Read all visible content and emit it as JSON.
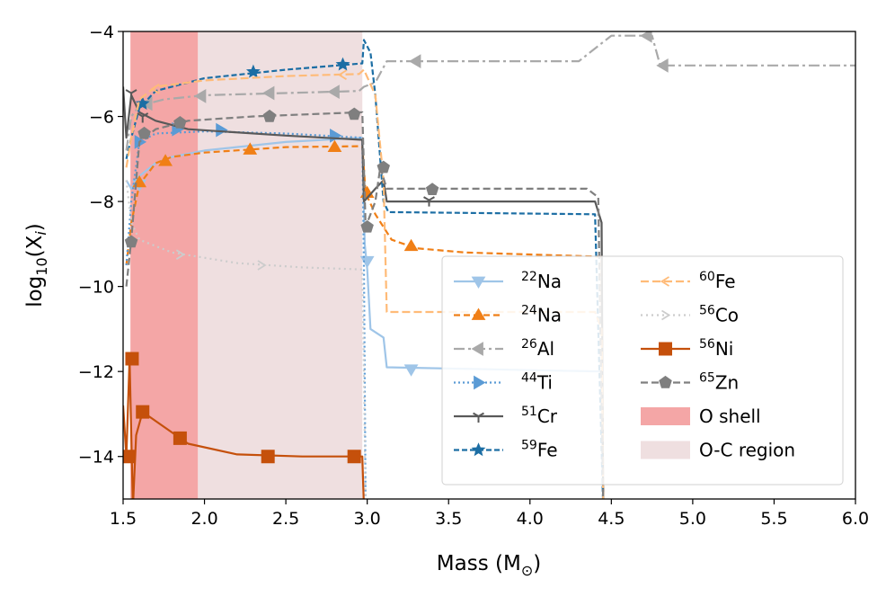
{
  "chart_data": {
    "type": "line",
    "xlabel": "Mass (M",
    "xlabel_suffix": ")",
    "xlabel_sub": "⊙",
    "ylabel_base": "log",
    "ylabel_sub": "10",
    "ylabel_arg": "(X",
    "ylabel_arg_sub": "i",
    "ylabel_close": ")",
    "xlim": [
      1.5,
      6.0
    ],
    "ylim": [
      -15,
      -4
    ],
    "xticks": [
      1.5,
      2.0,
      2.5,
      3.0,
      3.5,
      4.0,
      4.5,
      5.0,
      5.5,
      6.0
    ],
    "xtick_labels": [
      "1.5",
      "2.0",
      "2.5",
      "3.0",
      "3.5",
      "4.0",
      "4.5",
      "5.0",
      "5.5",
      "6.0"
    ],
    "yticks": [
      -4,
      -6,
      -8,
      -10,
      -12,
      -14
    ],
    "ytick_labels": [
      "−4",
      "−6",
      "−8",
      "−10",
      "−12",
      "−14"
    ],
    "legend_position": "lower-right",
    "regions": [
      {
        "name": "O shell",
        "x": [
          1.545,
          1.96
        ],
        "color": "#f4a6a6"
      },
      {
        "name": "O-C region",
        "x": [
          1.96,
          2.97
        ],
        "color": "#efdfe0"
      }
    ],
    "series": [
      {
        "label_sup": "22",
        "label": "Na",
        "color": "#9fc5e8",
        "dash": "",
        "marker": "tri-down",
        "points": [
          [
            1.52,
            -7.5
          ],
          [
            1.55,
            -7.7
          ],
          [
            1.6,
            -7.4
          ],
          [
            1.7,
            -7.1
          ],
          [
            1.8,
            -6.95
          ],
          [
            2.0,
            -6.8
          ],
          [
            2.5,
            -6.6
          ],
          [
            2.97,
            -6.5
          ],
          [
            2.985,
            -9.0
          ],
          [
            3.0,
            -9.6
          ],
          [
            3.02,
            -11.0
          ],
          [
            3.1,
            -11.2
          ],
          [
            3.12,
            -11.9
          ],
          [
            4.44,
            -12.0
          ],
          [
            4.45,
            -15.2
          ]
        ],
        "markers": [
          [
            1.6,
            -7.6
          ],
          [
            3.0,
            -9.4
          ],
          [
            3.27,
            -11.95
          ]
        ]
      },
      {
        "label_sup": "24",
        "label": "Na",
        "color": "#f07f16",
        "dash": "7,4",
        "marker": "tri-up",
        "points": [
          [
            1.52,
            -9.5
          ],
          [
            1.55,
            -8.5
          ],
          [
            1.6,
            -7.6
          ],
          [
            1.7,
            -7.1
          ],
          [
            1.8,
            -6.95
          ],
          [
            2.0,
            -6.85
          ],
          [
            2.5,
            -6.72
          ],
          [
            2.97,
            -6.7
          ],
          [
            2.99,
            -7.8
          ],
          [
            3.05,
            -8.3
          ],
          [
            3.15,
            -8.9
          ],
          [
            3.3,
            -9.1
          ],
          [
            3.6,
            -9.2
          ],
          [
            4.44,
            -9.3
          ],
          [
            4.45,
            -15.2
          ]
        ],
        "markers": [
          [
            1.6,
            -7.55
          ],
          [
            1.76,
            -7.05
          ],
          [
            2.28,
            -6.78
          ],
          [
            2.8,
            -6.72
          ],
          [
            3.0,
            -7.8
          ],
          [
            3.27,
            -9.05
          ]
        ]
      },
      {
        "label_sup": "26",
        "label": "Al",
        "color": "#a9a9a9",
        "dash": "12,4,3,4",
        "marker": "tri-left",
        "points": [
          [
            1.52,
            -6.8
          ],
          [
            1.55,
            -6.0
          ],
          [
            1.6,
            -5.75
          ],
          [
            1.75,
            -5.6
          ],
          [
            2.0,
            -5.5
          ],
          [
            2.5,
            -5.45
          ],
          [
            2.95,
            -5.4
          ],
          [
            2.98,
            -5.3
          ],
          [
            3.05,
            -5.2
          ],
          [
            3.12,
            -4.7
          ],
          [
            4.3,
            -4.7
          ],
          [
            4.5,
            -4.1
          ],
          [
            4.75,
            -4.1
          ],
          [
            4.8,
            -4.8
          ],
          [
            6.0,
            -4.8
          ]
        ],
        "markers": [
          [
            1.65,
            -5.7
          ],
          [
            1.98,
            -5.52
          ],
          [
            2.4,
            -5.45
          ],
          [
            2.8,
            -5.42
          ],
          [
            3.3,
            -4.7
          ],
          [
            4.72,
            -4.1
          ],
          [
            4.82,
            -4.8
          ]
        ]
      },
      {
        "label_sup": "44",
        "label": "Ti",
        "color": "#5b9bd5",
        "dash": "2,3",
        "marker": "tri-right",
        "points": [
          [
            1.52,
            -9.5
          ],
          [
            1.55,
            -8.0
          ],
          [
            1.6,
            -6.6
          ],
          [
            1.7,
            -6.4
          ],
          [
            2.0,
            -6.35
          ],
          [
            2.5,
            -6.4
          ],
          [
            2.97,
            -6.5
          ],
          [
            2.98,
            -9.5
          ],
          [
            2.99,
            -15.2
          ]
        ],
        "markers": [
          [
            1.6,
            -6.6
          ],
          [
            1.83,
            -6.3
          ],
          [
            2.1,
            -6.32
          ],
          [
            2.8,
            -6.45
          ]
        ]
      },
      {
        "label_sup": "51",
        "label": "Cr",
        "color": "#595959",
        "dash": "",
        "marker": "tri-y",
        "points": [
          [
            1.5,
            -5.3
          ],
          [
            1.52,
            -6.5
          ],
          [
            1.55,
            -5.5
          ],
          [
            1.6,
            -5.9
          ],
          [
            1.7,
            -6.1
          ],
          [
            1.9,
            -6.3
          ],
          [
            2.5,
            -6.45
          ],
          [
            2.97,
            -6.55
          ],
          [
            2.98,
            -8.0
          ],
          [
            3.05,
            -7.7
          ],
          [
            3.1,
            -7.5
          ],
          [
            3.12,
            -8.0
          ],
          [
            4.4,
            -8.0
          ],
          [
            4.44,
            -8.5
          ],
          [
            4.45,
            -15.2
          ]
        ],
        "markers": [
          [
            1.55,
            -5.45
          ],
          [
            1.62,
            -6.0
          ],
          [
            3.38,
            -7.97
          ]
        ]
      },
      {
        "label_sup": "59",
        "label": "Fe",
        "color": "#1c6ea4",
        "dash": "6,3",
        "marker": "star",
        "points": [
          [
            1.52,
            -7.0
          ],
          [
            1.55,
            -6.5
          ],
          [
            1.6,
            -5.8
          ],
          [
            1.7,
            -5.4
          ],
          [
            2.0,
            -5.1
          ],
          [
            2.5,
            -4.9
          ],
          [
            2.97,
            -4.75
          ],
          [
            2.98,
            -4.2
          ],
          [
            3.02,
            -4.5
          ],
          [
            3.05,
            -5.5
          ],
          [
            3.1,
            -8.0
          ],
          [
            3.13,
            -8.25
          ],
          [
            4.4,
            -8.3
          ],
          [
            4.45,
            -15.2
          ]
        ],
        "markers": [
          [
            1.62,
            -5.7
          ],
          [
            2.3,
            -4.95
          ],
          [
            2.85,
            -4.78
          ]
        ]
      },
      {
        "label_sup": "60",
        "label": "Fe",
        "color": "#ffbb78",
        "dash": "9,4",
        "marker": "tri-left-small",
        "points": [
          [
            1.52,
            -7.2
          ],
          [
            1.55,
            -6.5
          ],
          [
            1.6,
            -5.6
          ],
          [
            1.7,
            -5.3
          ],
          [
            2.0,
            -5.15
          ],
          [
            2.5,
            -5.05
          ],
          [
            2.95,
            -5.0
          ],
          [
            2.98,
            -4.9
          ],
          [
            3.05,
            -5.5
          ],
          [
            3.1,
            -7.5
          ],
          [
            3.12,
            -10.6
          ],
          [
            4.4,
            -10.6
          ],
          [
            4.44,
            -11.0
          ],
          [
            4.45,
            -15.2
          ]
        ],
        "markers": [
          [
            1.7,
            -5.35
          ],
          [
            2.85,
            -5.02
          ]
        ]
      },
      {
        "label_sup": "56",
        "label": "Co",
        "color": "#cccccc",
        "dash": "2,4",
        "marker": "tri-right-small",
        "points": [
          [
            1.52,
            -7.5
          ],
          [
            1.55,
            -8.5
          ],
          [
            1.6,
            -8.9
          ],
          [
            1.8,
            -9.2
          ],
          [
            2.2,
            -9.45
          ],
          [
            2.6,
            -9.55
          ],
          [
            2.97,
            -9.6
          ],
          [
            2.98,
            -12.0
          ],
          [
            2.99,
            -15.2
          ]
        ],
        "markers": [
          [
            1.85,
            -9.25
          ],
          [
            2.35,
            -9.5
          ]
        ]
      },
      {
        "label_sup": "56",
        "label": "Ni",
        "color": "#c5500b",
        "dash": "",
        "marker": "square",
        "points": [
          [
            1.5,
            -12.8
          ],
          [
            1.52,
            -14.0
          ],
          [
            1.54,
            -11.7
          ],
          [
            1.56,
            -15.2
          ],
          [
            1.58,
            -13.5
          ],
          [
            1.62,
            -12.95
          ],
          [
            1.75,
            -13.3
          ],
          [
            1.9,
            -13.7
          ],
          [
            2.2,
            -13.95
          ],
          [
            2.6,
            -14.0
          ],
          [
            2.97,
            -14.0
          ],
          [
            2.98,
            -15.2
          ]
        ],
        "markers": [
          [
            1.53,
            -14.0
          ],
          [
            1.555,
            -11.7
          ],
          [
            1.62,
            -12.95
          ],
          [
            1.85,
            -13.57
          ],
          [
            2.39,
            -14.0
          ],
          [
            2.92,
            -14.0
          ]
        ]
      },
      {
        "label_sup": "65",
        "label": "Zn",
        "color": "#7f7f7f",
        "dash": "8,4",
        "marker": "pentagon",
        "points": [
          [
            1.52,
            -10.0
          ],
          [
            1.55,
            -8.9
          ],
          [
            1.6,
            -6.6
          ],
          [
            1.7,
            -6.3
          ],
          [
            1.9,
            -6.1
          ],
          [
            2.3,
            -6.0
          ],
          [
            2.97,
            -5.9
          ],
          [
            2.99,
            -8.6
          ],
          [
            3.05,
            -8.0
          ],
          [
            3.08,
            -7.2
          ],
          [
            3.12,
            -7.7
          ],
          [
            4.35,
            -7.7
          ],
          [
            4.42,
            -7.9
          ],
          [
            4.45,
            -15.2
          ]
        ],
        "markers": [
          [
            1.55,
            -8.95
          ],
          [
            1.63,
            -6.4
          ],
          [
            1.85,
            -6.15
          ],
          [
            2.4,
            -6.0
          ],
          [
            2.92,
            -5.95
          ],
          [
            3.0,
            -8.6
          ],
          [
            3.1,
            -7.2
          ],
          [
            3.4,
            -7.72
          ]
        ]
      }
    ]
  },
  "legend": {
    "region_labels": [
      "O shell",
      "O-C region"
    ]
  }
}
